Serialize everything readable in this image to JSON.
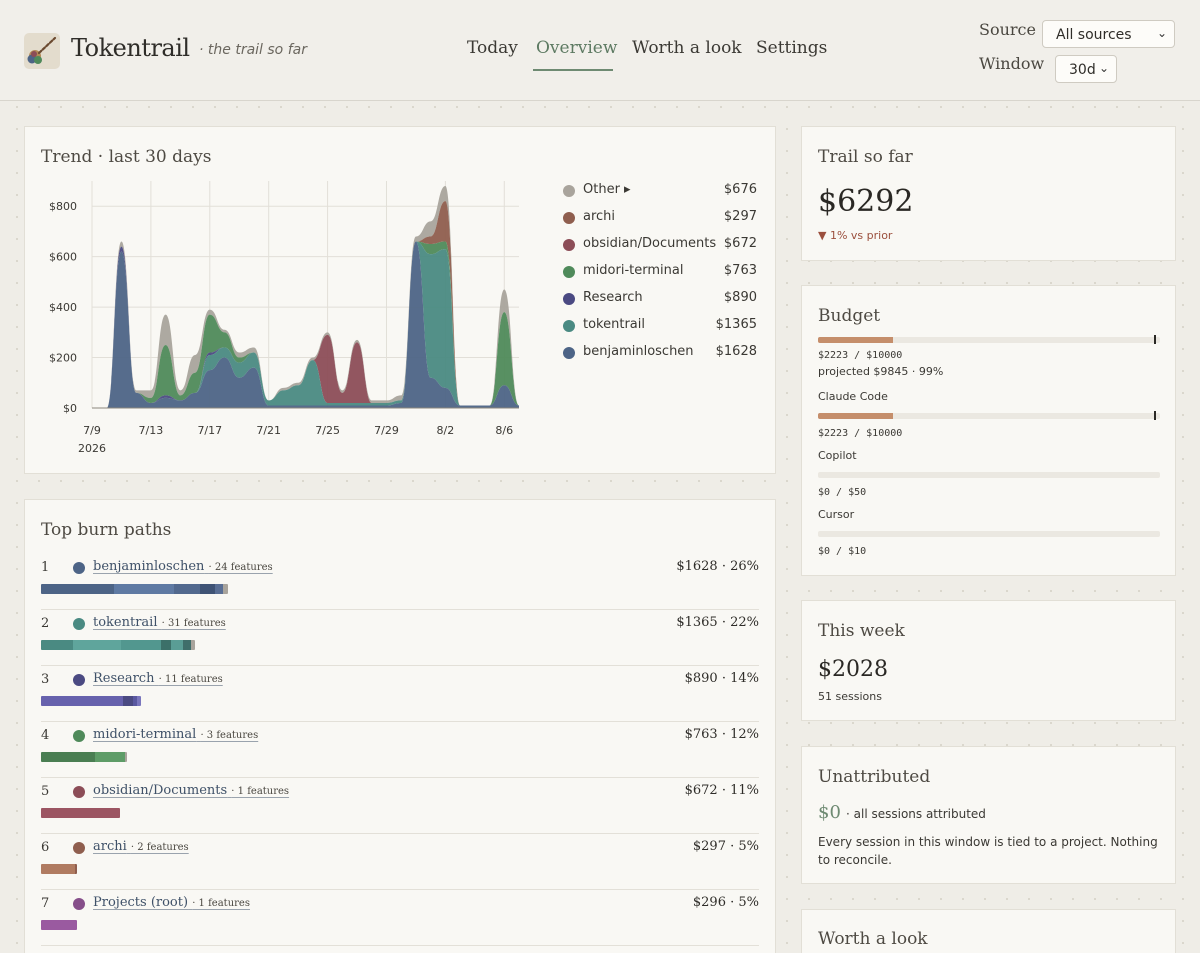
{
  "header": {
    "brand": "Tokentrail",
    "tagline": "· the trail so far",
    "nav": [
      {
        "label": "Today",
        "active": false
      },
      {
        "label": "Overview",
        "active": true
      },
      {
        "label": "Worth a look",
        "active": false
      },
      {
        "label": "Settings",
        "active": false
      }
    ],
    "source_label": "Source",
    "source_value": "All sources",
    "window_label": "Window",
    "window_value": "30d"
  },
  "trend": {
    "title": "Trend · last 30 days",
    "legend": [
      {
        "name": "Other ▸",
        "value": "$676",
        "color": "#a9a49c"
      },
      {
        "name": "archi",
        "value": "$297",
        "color": "#8f5e4e"
      },
      {
        "name": "obsidian/Documents",
        "value": "$672",
        "color": "#8c4d57"
      },
      {
        "name": "midori-terminal",
        "value": "$763",
        "color": "#4f8a5a"
      },
      {
        "name": "Research",
        "value": "$890",
        "color": "#4b4a82"
      },
      {
        "name": "tokentrail",
        "value": "$1365",
        "color": "#4a8a82"
      },
      {
        "name": "benjaminloschen",
        "value": "$1628",
        "color": "#4d6486"
      }
    ]
  },
  "chart_data": {
    "type": "area",
    "title": "Trend · last 30 days",
    "x_ticks": [
      "7/9",
      "7/13",
      "7/17",
      "7/21",
      "7/25",
      "7/29",
      "8/2",
      "8/6"
    ],
    "x_year_label": "2026",
    "y_ticks": [
      "$0",
      "$200",
      "$400",
      "$600",
      "$800"
    ],
    "ylim": [
      0,
      900
    ],
    "x": [
      "7/9",
      "7/10",
      "7/11",
      "7/12",
      "7/13",
      "7/14",
      "7/15",
      "7/16",
      "7/17",
      "7/18",
      "7/19",
      "7/20",
      "7/21",
      "7/22",
      "7/23",
      "7/24",
      "7/25",
      "7/26",
      "7/27",
      "7/28",
      "7/29",
      "7/30",
      "7/31",
      "8/1",
      "8/2",
      "8/3",
      "8/4",
      "8/5",
      "8/6",
      "8/7"
    ],
    "stacked": true,
    "series": [
      {
        "name": "benjaminloschen",
        "color": "#4d6486",
        "values": [
          0,
          0,
          620,
          60,
          20,
          40,
          30,
          60,
          150,
          200,
          120,
          160,
          10,
          10,
          10,
          10,
          10,
          10,
          10,
          10,
          10,
          20,
          660,
          120,
          80,
          10,
          10,
          10,
          90,
          10
        ]
      },
      {
        "name": "tokentrail",
        "color": "#4a8a82",
        "values": [
          0,
          0,
          0,
          0,
          0,
          0,
          0,
          0,
          60,
          40,
          60,
          60,
          20,
          60,
          80,
          180,
          10,
          10,
          10,
          10,
          10,
          10,
          0,
          490,
          550,
          0,
          0,
          0,
          0,
          0
        ]
      },
      {
        "name": "Research",
        "color": "#4b4a82",
        "values": [
          0,
          0,
          20,
          0,
          0,
          10,
          0,
          0,
          10,
          0,
          0,
          0,
          0,
          0,
          0,
          0,
          0,
          0,
          0,
          0,
          0,
          0,
          0,
          0,
          0,
          0,
          0,
          0,
          0,
          0
        ]
      },
      {
        "name": "midori-terminal",
        "color": "#4f8a5a",
        "values": [
          0,
          0,
          0,
          0,
          20,
          200,
          20,
          80,
          150,
          60,
          20,
          0,
          0,
          0,
          0,
          0,
          0,
          0,
          0,
          0,
          0,
          0,
          0,
          40,
          30,
          0,
          0,
          0,
          290,
          0
        ]
      },
      {
        "name": "obsidian/Documents",
        "color": "#8c4d57",
        "values": [
          0,
          0,
          0,
          0,
          0,
          0,
          0,
          0,
          0,
          0,
          0,
          0,
          0,
          0,
          0,
          0,
          270,
          40,
          240,
          0,
          0,
          0,
          0,
          0,
          0,
          0,
          0,
          0,
          0,
          0
        ]
      },
      {
        "name": "archi",
        "color": "#8f5e4e",
        "values": [
          0,
          0,
          0,
          0,
          0,
          0,
          0,
          0,
          0,
          0,
          0,
          0,
          0,
          0,
          0,
          0,
          0,
          0,
          0,
          0,
          0,
          0,
          0,
          30,
          160,
          0,
          0,
          0,
          0,
          0
        ]
      },
      {
        "name": "Other ▸",
        "color": "#a9a49c",
        "values": [
          0,
          0,
          20,
          10,
          30,
          120,
          20,
          70,
          20,
          10,
          20,
          20,
          0,
          10,
          10,
          10,
          10,
          10,
          10,
          10,
          10,
          20,
          20,
          60,
          60,
          0,
          0,
          0,
          90,
          0
        ]
      }
    ]
  },
  "burn_paths": {
    "title": "Top burn paths",
    "rows": [
      {
        "rank": "1",
        "name": "benjaminloschen",
        "features": "· 24 features",
        "right": "$1628 · 26%",
        "color": "#4d6486",
        "segments": [
          {
            "w": 73,
            "c": "#4d6486"
          },
          {
            "w": 60,
            "c": "#5f7aa3"
          },
          {
            "w": 26,
            "c": "#52698e"
          },
          {
            "w": 15,
            "c": "#3f5375"
          },
          {
            "w": 8,
            "c": "#596e94"
          },
          {
            "w": 5,
            "c": "#a9a49c"
          }
        ]
      },
      {
        "rank": "2",
        "name": "tokentrail",
        "features": "· 31 features",
        "right": "$1365 · 22%",
        "color": "#4a8a82",
        "segments": [
          {
            "w": 32,
            "c": "#4a8a82"
          },
          {
            "w": 48,
            "c": "#5fa59c"
          },
          {
            "w": 40,
            "c": "#52978f"
          },
          {
            "w": 10,
            "c": "#3c7069"
          },
          {
            "w": 12,
            "c": "#5a9d95"
          },
          {
            "w": 8,
            "c": "#3f6e6a"
          },
          {
            "w": 4,
            "c": "#a9a49c"
          }
        ]
      },
      {
        "rank": "3",
        "name": "Research",
        "features": "· 11 features",
        "right": "$890 · 14%",
        "color": "#4b4a82",
        "segments": [
          {
            "w": 82,
            "c": "#6762ad"
          },
          {
            "w": 10,
            "c": "#4b4a82"
          },
          {
            "w": 4,
            "c": "#5a58a0"
          },
          {
            "w": 4,
            "c": "#7a76bd"
          }
        ]
      },
      {
        "rank": "4",
        "name": "midori-terminal",
        "features": "· 3 features",
        "right": "$763 · 12%",
        "color": "#4f8a5a",
        "segments": [
          {
            "w": 54,
            "c": "#4a7e52"
          },
          {
            "w": 30,
            "c": "#5e9c67"
          },
          {
            "w": 2,
            "c": "#a9a49c"
          }
        ]
      },
      {
        "rank": "5",
        "name": "obsidian/Documents",
        "features": "· 1 features",
        "right": "$672 · 11%",
        "color": "#8c4d57",
        "segments": [
          {
            "w": 79,
            "c": "#9c5562"
          }
        ]
      },
      {
        "rank": "6",
        "name": "archi",
        "features": "· 2 features",
        "right": "$297 · 5%",
        "color": "#8f5e4e",
        "segments": [
          {
            "w": 34,
            "c": "#b07b61"
          },
          {
            "w": 2,
            "c": "#8f5e4e"
          }
        ]
      },
      {
        "rank": "7",
        "name": "Projects (root)",
        "features": "· 1 features",
        "right": "$296 · 5%",
        "color": "#864f8a",
        "segments": [
          {
            "w": 36,
            "c": "#9a5aa0"
          }
        ]
      }
    ]
  },
  "trail": {
    "title": "Trail so far",
    "value": "$6292",
    "delta": "▼ 1% vs prior",
    "delta_color": "#9b4f3d"
  },
  "budget": {
    "title": "Budget",
    "total": {
      "fraction": 0.2223,
      "line": "$2223 / $10000",
      "projected": "projected $9845 · 99%"
    },
    "items": [
      {
        "name": "Claude Code",
        "fraction": 0.2223,
        "line": "$2223 / $10000",
        "marker": true
      },
      {
        "name": "Copilot",
        "fraction": 0,
        "line": "$0 / $50",
        "marker": false
      },
      {
        "name": "Cursor",
        "fraction": 0,
        "line": "$0 / $10",
        "marker": false
      }
    ]
  },
  "week": {
    "title": "This week",
    "value": "$2028",
    "sessions": "51 sessions"
  },
  "unattributed": {
    "title": "Unattributed",
    "value": "$0",
    "suffix": "· all sessions attributed",
    "body": "Every session in this window is tied to a project. Nothing to reconcile."
  },
  "worth": {
    "title": "Worth a look"
  }
}
